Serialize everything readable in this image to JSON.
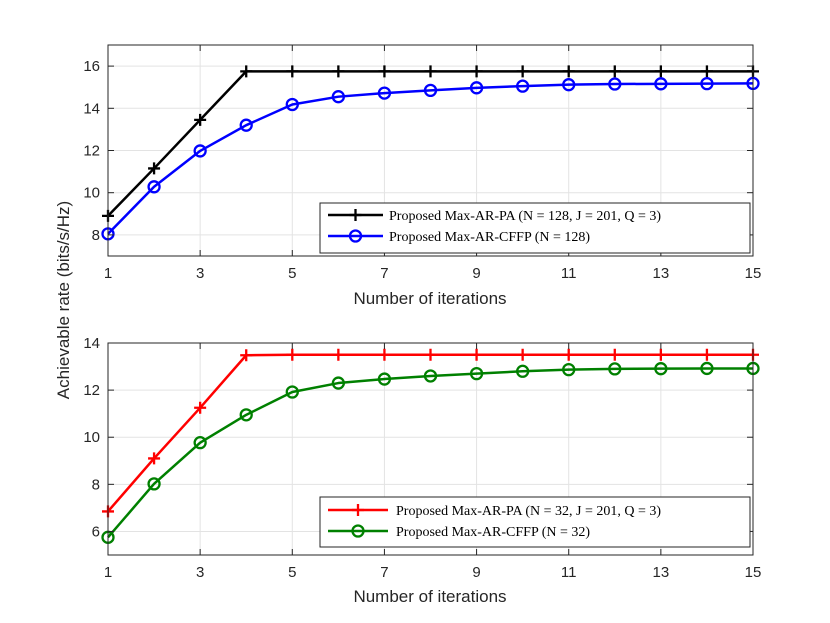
{
  "chart_data": {
    "type": "line",
    "ylabel": "Achievable rate (bits/s/Hz)",
    "subplots": [
      {
        "xlabel": "Number of iterations",
        "xlim": [
          1,
          15
        ],
        "ylim": [
          7,
          17
        ],
        "xticks": [
          1,
          3,
          5,
          7,
          9,
          11,
          13,
          15
        ],
        "yticks": [
          8,
          10,
          12,
          14,
          16
        ],
        "grid": true,
        "legend_position": "bottom-right",
        "x": [
          1,
          2,
          3,
          4,
          5,
          6,
          7,
          8,
          9,
          10,
          11,
          12,
          13,
          14,
          15
        ],
        "series": [
          {
            "name": "Proposed Max-AR-PA (N = 128, J = 201, Q = 3)",
            "color": "#000000",
            "marker": "plus",
            "values": [
              8.9,
              11.15,
              13.45,
              15.75,
              15.75,
              15.75,
              15.75,
              15.75,
              15.75,
              15.75,
              15.75,
              15.75,
              15.75,
              15.75,
              15.75
            ]
          },
          {
            "name": "Proposed Max-AR-CFFP (N = 128)",
            "color": "#0000ff",
            "marker": "circle",
            "values": [
              8.05,
              10.28,
              11.98,
              13.2,
              14.18,
              14.55,
              14.72,
              14.85,
              14.97,
              15.05,
              15.12,
              15.15,
              15.16,
              15.17,
              15.18
            ]
          }
        ]
      },
      {
        "xlabel": "Number of iterations",
        "xlim": [
          1,
          15
        ],
        "ylim": [
          5,
          14
        ],
        "xticks": [
          1,
          3,
          5,
          7,
          9,
          11,
          13,
          15
        ],
        "yticks": [
          6,
          8,
          10,
          12,
          14
        ],
        "grid": true,
        "legend_position": "bottom-right",
        "x": [
          1,
          2,
          3,
          4,
          5,
          6,
          7,
          8,
          9,
          10,
          11,
          12,
          13,
          14,
          15
        ],
        "series": [
          {
            "name": "Proposed Max-AR-PA (N = 32, J = 201, Q = 3)",
            "color": "#ff0000",
            "marker": "plus",
            "values": [
              6.85,
              9.1,
              11.25,
              13.48,
              13.5,
              13.5,
              13.5,
              13.5,
              13.5,
              13.5,
              13.5,
              13.5,
              13.5,
              13.5,
              13.5
            ]
          },
          {
            "name": "Proposed Max-AR-CFFP (N = 32)",
            "color": "#008000",
            "marker": "circle",
            "values": [
              5.75,
              8.02,
              9.77,
              10.95,
              11.92,
              12.3,
              12.47,
              12.6,
              12.7,
              12.8,
              12.87,
              12.9,
              12.91,
              12.92,
              12.92
            ]
          }
        ]
      }
    ]
  }
}
